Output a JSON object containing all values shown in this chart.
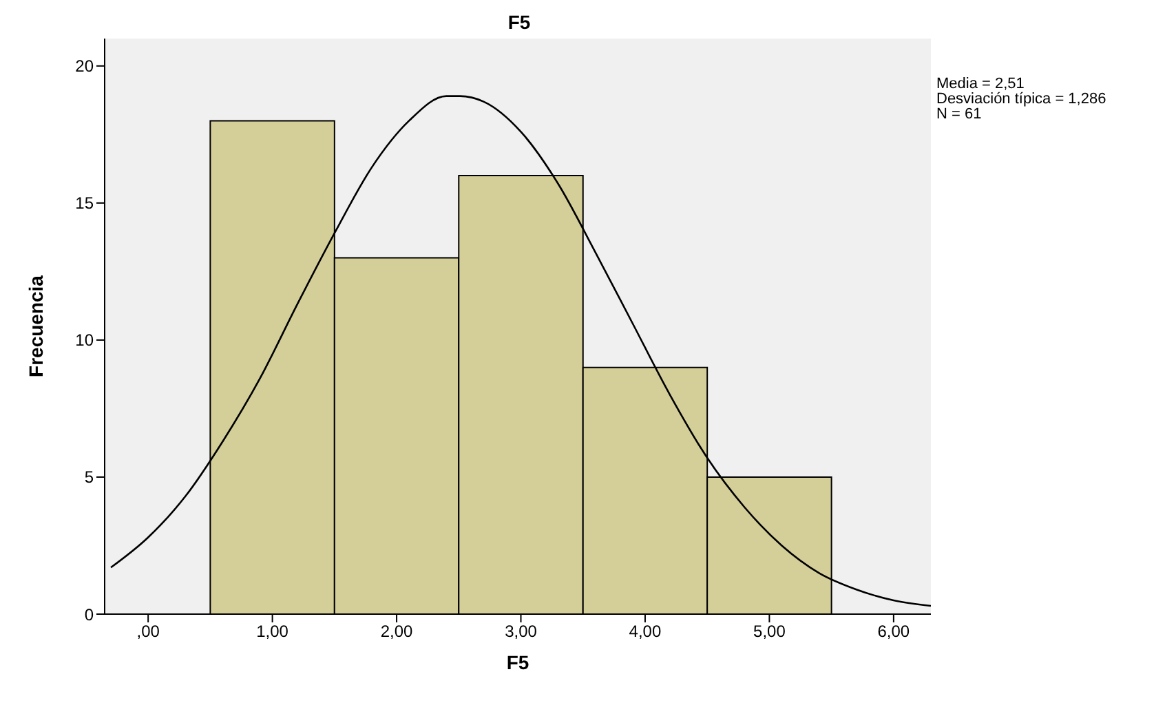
{
  "chart_data": {
    "type": "histogram",
    "title": "F5",
    "xlabel": "F5",
    "ylabel": "Frecuencia",
    "bins": [
      0.5,
      1.5,
      2.5,
      3.5,
      4.5,
      5.5
    ],
    "values": [
      18,
      13,
      16,
      9,
      5
    ],
    "color": "#d4cf99",
    "series": [
      {
        "type": "line",
        "color": "#000000",
        "x": [
          -0.3,
          0,
          0.3,
          0.6,
          0.9,
          1.2,
          1.5,
          1.8,
          2.1,
          2.4,
          2.51,
          2.7,
          3.0,
          3.3,
          3.6,
          3.9,
          4.2,
          4.5,
          4.8,
          5.1,
          5.4,
          5.7,
          6.0,
          6.3
        ],
        "values": [
          1.7,
          2.8,
          4.3,
          6.3,
          8.6,
          11.3,
          13.9,
          16.3,
          18.0,
          18.9,
          18.9,
          18.7,
          17.6,
          15.7,
          13.2,
          10.6,
          8.0,
          5.7,
          3.9,
          2.5,
          1.5,
          0.9,
          0.5,
          0.3
        ]
      }
    ],
    "marker": "none",
    "xlim": [
      -0.35,
      6.3
    ],
    "xticks": [
      {
        "value": 0,
        "label": ",00"
      },
      {
        "value": 1,
        "label": "1,00"
      },
      {
        "value": 2,
        "label": "2,00"
      },
      {
        "value": 3,
        "label": "3,00"
      },
      {
        "value": 4,
        "label": "4,00"
      },
      {
        "value": 5,
        "label": "5,00"
      },
      {
        "value": 6,
        "label": "6,00"
      }
    ],
    "ylim": [
      0,
      21
    ],
    "yticks": [
      0,
      5,
      10,
      15,
      20
    ],
    "annotations": [
      "Media = 2,51",
      "Desviación típica = 1,286",
      "N = 61"
    ]
  }
}
